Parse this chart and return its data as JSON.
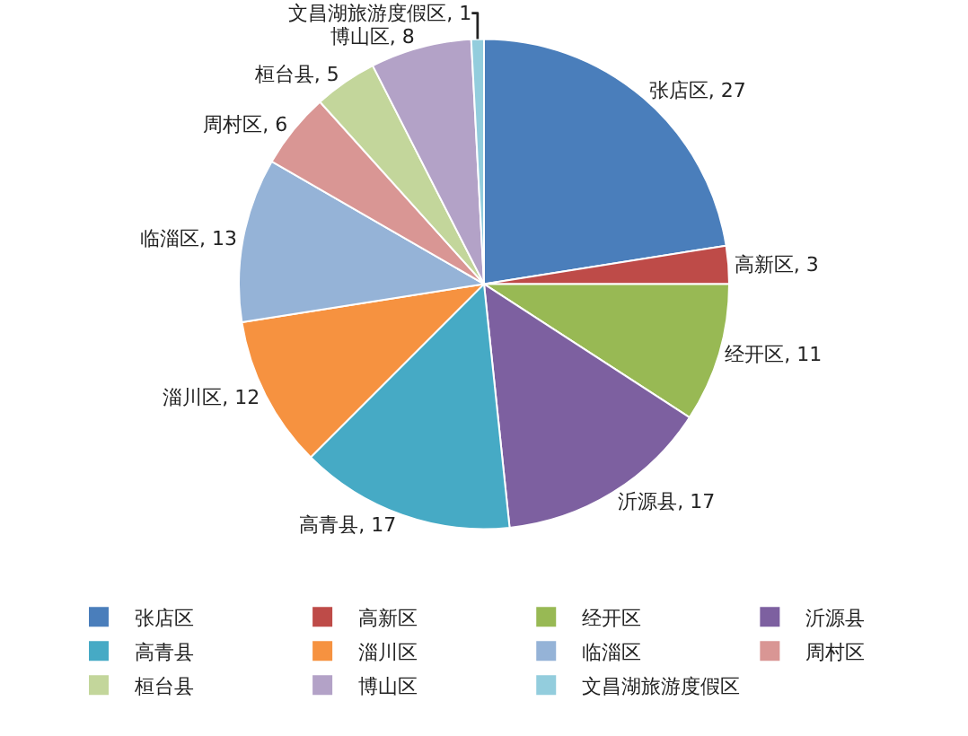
{
  "chart_data": {
    "type": "pie",
    "categories": [
      "张店区",
      "高新区",
      "经开区",
      "沂源县",
      "高青县",
      "淄川区",
      "临淄区",
      "周村区",
      "桓台县",
      "博山区",
      "文昌湖旅游度假区"
    ],
    "values": [
      27,
      3,
      11,
      17,
      17,
      12,
      13,
      6,
      5,
      8,
      1
    ],
    "colors": [
      "#4a7ebb",
      "#be4b48",
      "#98b954",
      "#7d60a0",
      "#46aac5",
      "#f69240",
      "#95b3d7",
      "#d99694",
      "#c3d69b",
      "#b3a2c7",
      "#93cddd"
    ],
    "value_labels": [
      "张店区, 27",
      "高新区, 3",
      "经开区, 11",
      "沂源县, 17",
      "高青县, 17",
      "淄川区, 12",
      "临淄区, 13",
      "周村区, 6",
      "桓台县, 5",
      "博山区, 8",
      "文昌湖旅游度假区, 1"
    ],
    "legend": "bottom"
  }
}
